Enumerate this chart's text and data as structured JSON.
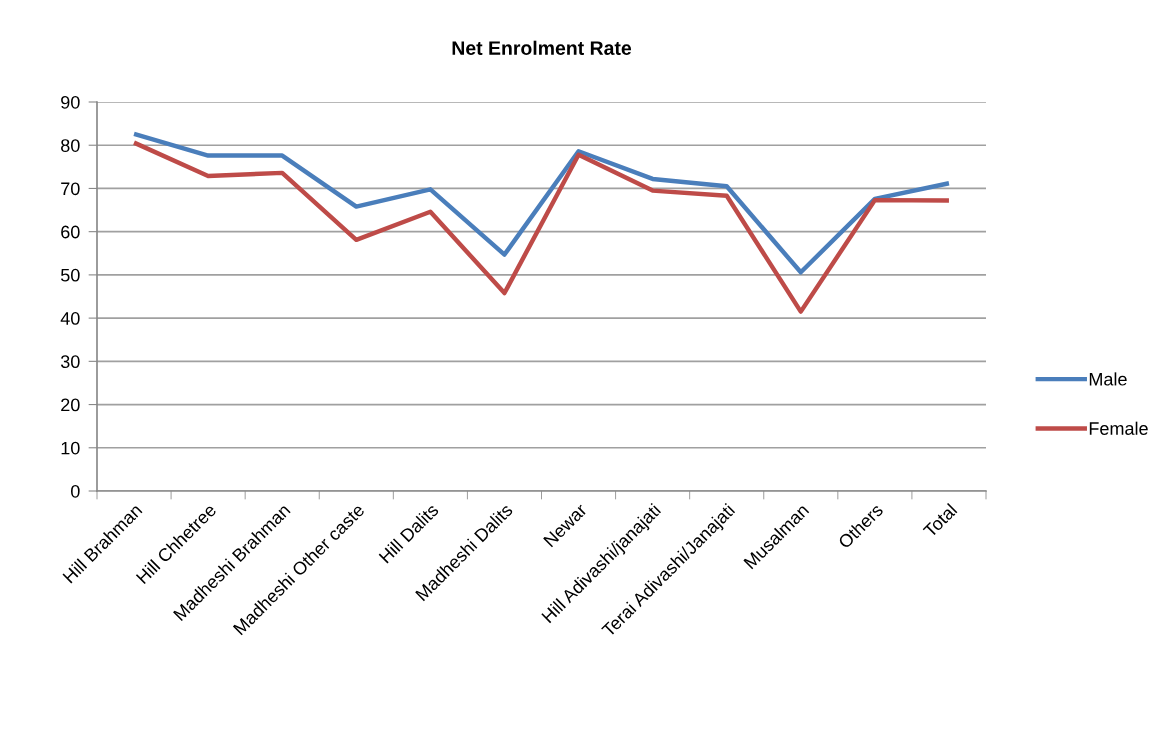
{
  "chart_data": {
    "type": "line",
    "title": "Net Enrolment Rate",
    "categories": [
      "Hill Brahman",
      "Hill Chhetree",
      "Madheshi Brahman",
      "Madheshi Other caste",
      "Hill Dalits",
      "Madheshi Dalits",
      "Newar",
      "Hill Adivashi/janajati",
      "Terai Adivashi/Janajati",
      "Musalman",
      "Others",
      "Total"
    ],
    "series": [
      {
        "name": "Male",
        "color": "#4a7ebb",
        "values": [
          82.6,
          77.6,
          77.6,
          65.8,
          69.8,
          54.7,
          78.6,
          72.2,
          70.5,
          50.6,
          67.6,
          71.2
        ]
      },
      {
        "name": "Female",
        "color": "#be4b48",
        "values": [
          80.6,
          72.9,
          73.6,
          58.1,
          64.6,
          45.8,
          77.8,
          69.5,
          68.3,
          41.5,
          67.3,
          67.2
        ]
      }
    ],
    "ylim": [
      0,
      90
    ],
    "yticks": [
      0,
      10,
      20,
      30,
      40,
      50,
      60,
      70,
      80,
      90
    ],
    "grid": "y",
    "legend": "right",
    "marker": "none",
    "line_style": "solid"
  }
}
